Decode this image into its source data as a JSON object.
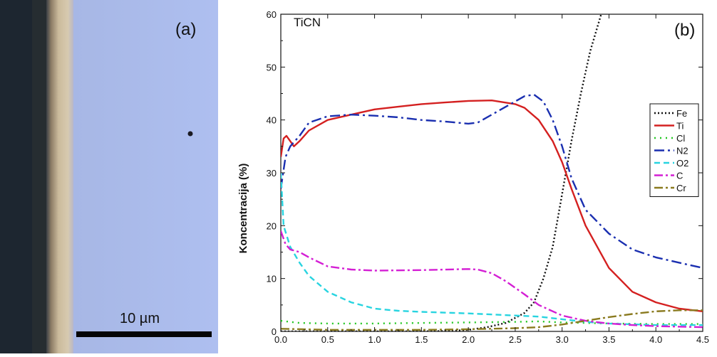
{
  "micrograph": {
    "panel_label": "(a)",
    "scale_bar_label": "10 µm",
    "colors": {
      "substrate": "#aabbe8",
      "coating": "#c9b89a",
      "dark_edge": "#1d2630"
    }
  },
  "chart_data": {
    "type": "line",
    "panel_label": "(b)",
    "inset_title": "TiCN",
    "title": "",
    "xlabel": "",
    "ylabel": "Koncentracija (%)",
    "xlim": [
      0,
      4.5
    ],
    "ylim": [
      0,
      60
    ],
    "x_ticks": [
      "0.0",
      "0.5",
      "1.0",
      "1.5",
      "2.0",
      "2.5",
      "3.0",
      "3.5",
      "4.0",
      "4.5"
    ],
    "y_ticks": [
      "0",
      "10",
      "20",
      "30",
      "40",
      "50",
      "60"
    ],
    "grid": false,
    "legend_position": "right",
    "series": [
      {
        "name": "Fe",
        "color": "#111111",
        "dash": "2,3",
        "points": [
          [
            0,
            0
          ],
          [
            1.5,
            0
          ],
          [
            1.8,
            0.1
          ],
          [
            2.0,
            0.3
          ],
          [
            2.2,
            0.8
          ],
          [
            2.4,
            1.6
          ],
          [
            2.6,
            3.5
          ],
          [
            2.7,
            5.5
          ],
          [
            2.8,
            10
          ],
          [
            2.9,
            16
          ],
          [
            3.0,
            26
          ],
          [
            3.1,
            36
          ],
          [
            3.2,
            45
          ],
          [
            3.3,
            53
          ],
          [
            3.4,
            59
          ],
          [
            3.45,
            62
          ]
        ]
      },
      {
        "name": "Ti",
        "color": "#d42020",
        "dash": "",
        "points": [
          [
            0,
            33
          ],
          [
            0.03,
            36.5
          ],
          [
            0.06,
            37
          ],
          [
            0.1,
            36
          ],
          [
            0.14,
            35
          ],
          [
            0.2,
            36
          ],
          [
            0.3,
            38
          ],
          [
            0.5,
            40
          ],
          [
            0.75,
            41
          ],
          [
            1.0,
            42
          ],
          [
            1.25,
            42.5
          ],
          [
            1.5,
            43
          ],
          [
            1.75,
            43.3
          ],
          [
            2.0,
            43.6
          ],
          [
            2.25,
            43.7
          ],
          [
            2.5,
            43
          ],
          [
            2.6,
            42.3
          ],
          [
            2.75,
            40
          ],
          [
            2.9,
            36
          ],
          [
            3.0,
            32
          ],
          [
            3.1,
            27
          ],
          [
            3.25,
            20
          ],
          [
            3.5,
            12
          ],
          [
            3.75,
            7.5
          ],
          [
            4.0,
            5.5
          ],
          [
            4.25,
            4.3
          ],
          [
            4.5,
            3.8
          ]
        ]
      },
      {
        "name": "Cl",
        "color": "#22c722",
        "dash": "2,6",
        "points": [
          [
            0,
            2
          ],
          [
            0.2,
            1.6
          ],
          [
            0.5,
            1.5
          ],
          [
            1.0,
            1.5
          ],
          [
            1.5,
            1.6
          ],
          [
            2.0,
            1.7
          ],
          [
            2.5,
            1.8
          ],
          [
            2.75,
            1.9
          ],
          [
            3.0,
            1.7
          ],
          [
            3.5,
            1.5
          ],
          [
            4.0,
            1.4
          ],
          [
            4.5,
            1.4
          ]
        ]
      },
      {
        "name": "N2",
        "color": "#1a2fb0",
        "dash": "14,5,3,5",
        "points": [
          [
            0,
            27
          ],
          [
            0.05,
            33
          ],
          [
            0.1,
            35
          ],
          [
            0.2,
            37
          ],
          [
            0.3,
            39.5
          ],
          [
            0.5,
            40.7
          ],
          [
            0.75,
            41
          ],
          [
            1.0,
            40.8
          ],
          [
            1.25,
            40.5
          ],
          [
            1.5,
            40
          ],
          [
            1.75,
            39.7
          ],
          [
            2.0,
            39.3
          ],
          [
            2.1,
            39.5
          ],
          [
            2.25,
            41
          ],
          [
            2.4,
            42.5
          ],
          [
            2.6,
            44.5
          ],
          [
            2.7,
            44.8
          ],
          [
            2.8,
            43.5
          ],
          [
            2.9,
            40
          ],
          [
            3.0,
            35
          ],
          [
            3.1,
            29
          ],
          [
            3.25,
            23
          ],
          [
            3.5,
            18.5
          ],
          [
            3.75,
            15.5
          ],
          [
            4.0,
            14
          ],
          [
            4.25,
            13
          ],
          [
            4.5,
            12
          ]
        ]
      },
      {
        "name": "O2",
        "color": "#28d4e0",
        "dash": "8,5",
        "points": [
          [
            0,
            30
          ],
          [
            0.03,
            20
          ],
          [
            0.1,
            16
          ],
          [
            0.2,
            13
          ],
          [
            0.3,
            10.5
          ],
          [
            0.5,
            7.5
          ],
          [
            0.75,
            5.5
          ],
          [
            1.0,
            4.3
          ],
          [
            1.25,
            3.9
          ],
          [
            1.5,
            3.7
          ],
          [
            2.0,
            3.4
          ],
          [
            2.5,
            3
          ],
          [
            2.75,
            2.8
          ],
          [
            3.0,
            2.3
          ],
          [
            3.25,
            1.8
          ],
          [
            3.5,
            1.5
          ],
          [
            4.0,
            1.2
          ],
          [
            4.5,
            1.2
          ]
        ]
      },
      {
        "name": "C",
        "color": "#d41fd4",
        "dash": "12,4,3,4",
        "points": [
          [
            0,
            19
          ],
          [
            0.05,
            16.5
          ],
          [
            0.1,
            15.5
          ],
          [
            0.2,
            15
          ],
          [
            0.3,
            14
          ],
          [
            0.5,
            12.3
          ],
          [
            0.75,
            11.7
          ],
          [
            1.0,
            11.5
          ],
          [
            1.5,
            11.6
          ],
          [
            2.0,
            11.8
          ],
          [
            2.1,
            11.7
          ],
          [
            2.25,
            11
          ],
          [
            2.4,
            9.5
          ],
          [
            2.6,
            7
          ],
          [
            2.75,
            5
          ],
          [
            3.0,
            3
          ],
          [
            3.25,
            2
          ],
          [
            3.5,
            1.5
          ],
          [
            3.75,
            1.2
          ],
          [
            4.0,
            1
          ],
          [
            4.5,
            0.8
          ]
        ]
      },
      {
        "name": "Cr",
        "color": "#8a7a1f",
        "dash": "12,4,3,4",
        "points": [
          [
            0,
            0.5
          ],
          [
            0.5,
            0.3
          ],
          [
            1.0,
            0.3
          ],
          [
            1.5,
            0.3
          ],
          [
            2.0,
            0.4
          ],
          [
            2.5,
            0.6
          ],
          [
            2.75,
            0.8
          ],
          [
            3.0,
            1.3
          ],
          [
            3.25,
            2
          ],
          [
            3.5,
            2.7
          ],
          [
            3.75,
            3.3
          ],
          [
            4.0,
            3.8
          ],
          [
            4.25,
            4
          ],
          [
            4.5,
            4
          ]
        ]
      }
    ]
  }
}
